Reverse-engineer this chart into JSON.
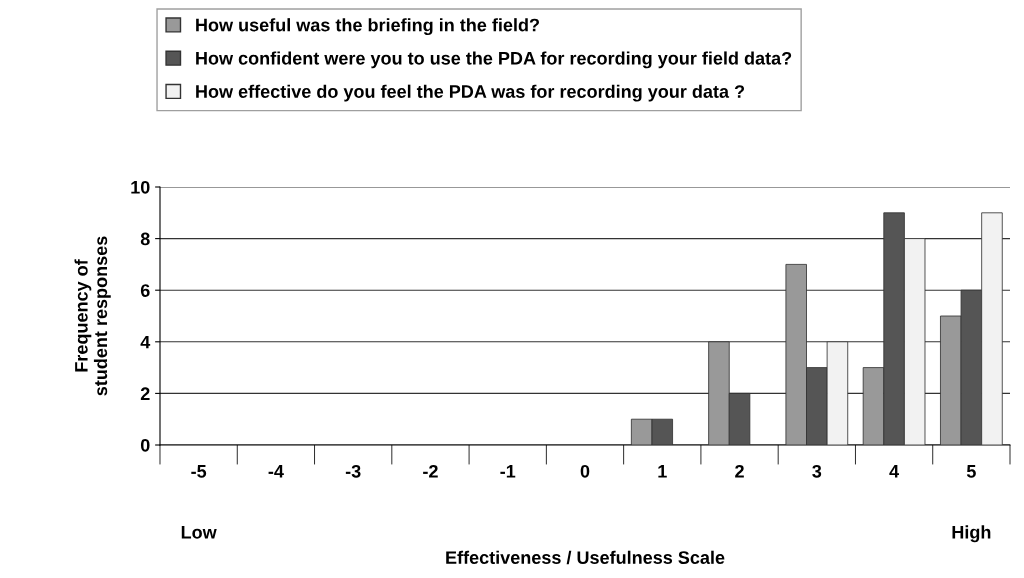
{
  "chart_data": {
    "type": "bar",
    "xlabel": "Effectiveness / Usefulness Scale",
    "ylabel": "Frequency of student responses",
    "categories": [
      "-5",
      "-4",
      "-3",
      "-2",
      "-1",
      "0",
      "1",
      "2",
      "3",
      "4",
      "5"
    ],
    "series": [
      {
        "name": "How useful was the briefing in the field?",
        "color": "#999999",
        "values": [
          null,
          null,
          null,
          null,
          null,
          null,
          1,
          4,
          7,
          3,
          5
        ]
      },
      {
        "name": "How confident were you to use the PDA for recording your field data?",
        "color": "#555555",
        "values": [
          null,
          null,
          null,
          null,
          null,
          null,
          1,
          2,
          3,
          9,
          6
        ]
      },
      {
        "name": "How effective do you feel the PDA was for recording your data ?",
        "color": "#f2f2f2",
        "values": [
          null,
          null,
          null,
          null,
          null,
          null,
          null,
          null,
          4,
          8,
          9
        ]
      }
    ],
    "ylim": [
      0,
      10
    ],
    "yticks": [
      0,
      2,
      4,
      6,
      8,
      10
    ],
    "grid": "y",
    "legend": "top",
    "annotations": [
      "Low",
      "High"
    ]
  }
}
